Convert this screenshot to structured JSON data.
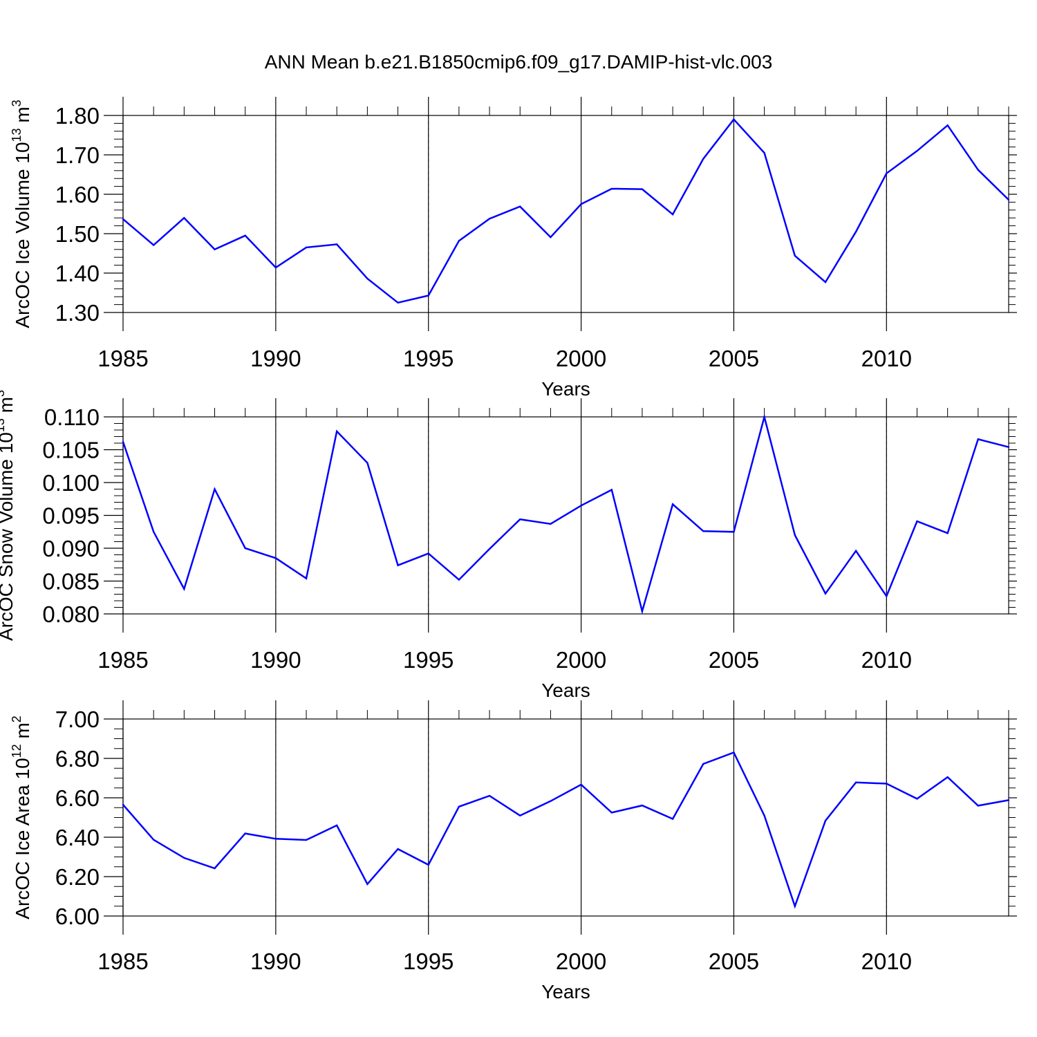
{
  "title": "ANN Mean b.e21.B1850cmip6.f09_g17.DAMIP-hist-vlc.003",
  "line_color": "#0000ff",
  "chart_data": [
    {
      "type": "line",
      "ylabel_main": "ArcOC Ice Volume 10",
      "ylabel_exp": "13",
      "ylabel_unit": " m",
      "ylabel_unit_exp": "3",
      "xlabel": "Years",
      "xlim": [
        1985,
        2014
      ],
      "ylim": [
        1.3,
        1.8
      ],
      "ytick_step": 0.1,
      "ytick_decimals": 2,
      "yminor": 5,
      "xticks": [
        "1985",
        "1990",
        "1995",
        "2000",
        "2005",
        "2010"
      ],
      "x": [
        1985,
        1986,
        1987,
        1988,
        1989,
        1990,
        1991,
        1992,
        1993,
        1994,
        1995,
        1996,
        1997,
        1998,
        1999,
        2000,
        2001,
        2002,
        2003,
        2004,
        2005,
        2006,
        2007,
        2008,
        2009,
        2010,
        2011,
        2012,
        2013,
        2014
      ],
      "values": [
        1.537,
        1.471,
        1.54,
        1.46,
        1.495,
        1.414,
        1.465,
        1.473,
        1.386,
        1.325,
        1.343,
        1.482,
        1.538,
        1.569,
        1.491,
        1.575,
        1.614,
        1.613,
        1.549,
        1.69,
        1.79,
        1.705,
        1.444,
        1.377,
        1.505,
        1.653,
        1.71,
        1.775,
        1.662,
        1.586
      ]
    },
    {
      "type": "line",
      "ylabel_main": "ArcOC Snow Volume 10",
      "ylabel_exp": "13",
      "ylabel_unit": " m",
      "ylabel_unit_exp": "3",
      "xlabel": "Years",
      "xlim": [
        1985,
        2014
      ],
      "ylim": [
        0.08,
        0.11
      ],
      "ytick_step": 0.005,
      "ytick_decimals": 3,
      "yminor": 5,
      "xticks": [
        "1985",
        "1990",
        "1995",
        "2000",
        "2005",
        "2010"
      ],
      "x": [
        1985,
        1986,
        1987,
        1988,
        1989,
        1990,
        1991,
        1992,
        1993,
        1994,
        1995,
        1996,
        1997,
        1998,
        1999,
        2000,
        2001,
        2002,
        2003,
        2004,
        2005,
        2006,
        2007,
        2008,
        2009,
        2010,
        2011,
        2012,
        2013,
        2014
      ],
      "values": [
        0.1062,
        0.0925,
        0.0838,
        0.099,
        0.09,
        0.0885,
        0.0854,
        0.1078,
        0.103,
        0.0874,
        0.0892,
        0.0852,
        0.0899,
        0.0944,
        0.0937,
        0.0965,
        0.0989,
        0.0804,
        0.0967,
        0.0926,
        0.0925,
        0.11,
        0.092,
        0.0831,
        0.0896,
        0.0827,
        0.0941,
        0.0923,
        0.1066,
        0.1054
      ]
    },
    {
      "type": "line",
      "ylabel_main": "ArcOC Ice Area 10",
      "ylabel_exp": "12",
      "ylabel_unit": " m",
      "ylabel_unit_exp": "2",
      "xlabel": "Years",
      "xlim": [
        1985,
        2014
      ],
      "ylim": [
        6.0,
        7.0
      ],
      "ytick_step": 0.2,
      "ytick_decimals": 2,
      "yminor": 4,
      "xticks": [
        "1985",
        "1990",
        "1995",
        "2000",
        "2005",
        "2010"
      ],
      "x": [
        1985,
        1986,
        1987,
        1988,
        1989,
        1990,
        1991,
        1992,
        1993,
        1994,
        1995,
        1996,
        1997,
        1998,
        1999,
        2000,
        2001,
        2002,
        2003,
        2004,
        2005,
        2006,
        2007,
        2008,
        2009,
        2010,
        2011,
        2012,
        2013,
        2014
      ],
      "values": [
        6.565,
        6.387,
        6.295,
        6.242,
        6.419,
        6.392,
        6.386,
        6.46,
        6.162,
        6.34,
        6.26,
        6.555,
        6.61,
        6.51,
        6.583,
        6.667,
        6.525,
        6.561,
        6.493,
        6.772,
        6.83,
        6.51,
        6.05,
        6.484,
        6.678,
        6.672,
        6.595,
        6.705,
        6.56,
        6.588
      ]
    }
  ]
}
